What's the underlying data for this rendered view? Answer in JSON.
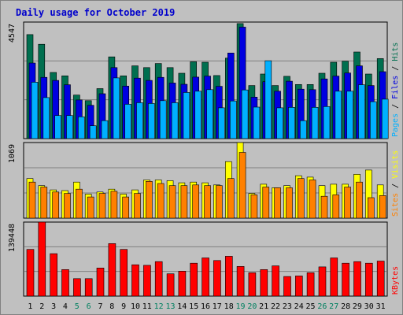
{
  "title": "Daily usage for October 2019",
  "colors": {
    "background": "#c0c0c0",
    "title": "#0000cc",
    "hits": "#006f4f",
    "files": "#0000e0",
    "pages": "#00b0ff",
    "visits": "#ffff00",
    "sites": "#ff8000",
    "kbytes": "#ff0000",
    "weekend_label": "#008060"
  },
  "chart_data": [
    {
      "type": "bar",
      "name": "hits-files-pages",
      "ymax_label": "4547",
      "legend": [
        "Pages",
        "Files",
        "Hits"
      ],
      "ylim": [
        0,
        4547
      ],
      "categories": [
        "1",
        "2",
        "3",
        "4",
        "5",
        "6",
        "7",
        "8",
        "9",
        "10",
        "11",
        "12",
        "13",
        "14",
        "15",
        "16",
        "17",
        "18",
        "19",
        "20",
        "21",
        "22",
        "23",
        "24",
        "25",
        "26",
        "27",
        "28",
        "29",
        "30",
        "31"
      ],
      "series": [
        {
          "name": "Hits",
          "color": "#006f4f",
          "values": [
            4060,
            3680,
            2580,
            2450,
            1700,
            1480,
            1950,
            3190,
            2450,
            2840,
            2770,
            2930,
            2770,
            2550,
            3000,
            2980,
            2460,
            3140,
            4490,
            2070,
            2520,
            2070,
            2430,
            2110,
            2110,
            2550,
            2980,
            3020,
            3380,
            2520,
            3120
          ]
        },
        {
          "name": "Files",
          "color": "#0000e0",
          "values": [
            2950,
            2390,
            2270,
            2100,
            1510,
            1300,
            1750,
            2770,
            2050,
            2360,
            2270,
            2390,
            2170,
            2120,
            2400,
            2440,
            2040,
            3340,
            4350,
            1620,
            2220,
            1850,
            2240,
            1930,
            1910,
            2330,
            2440,
            2560,
            2840,
            2070,
            2610
          ]
        },
        {
          "name": "Pages",
          "color": "#00b0ff",
          "values": [
            2200,
            1600,
            900,
            900,
            850,
            500,
            700,
            2370,
            1340,
            1400,
            1370,
            1480,
            1400,
            1800,
            1850,
            1910,
            1200,
            1470,
            1900,
            1230,
            3040,
            1200,
            1220,
            700,
            1220,
            1250,
            1850,
            1850,
            2100,
            1440,
            1540
          ]
        }
      ]
    },
    {
      "type": "bar",
      "name": "visits-sites",
      "ymax_label": "1069",
      "legend": [
        "Sites",
        "Visits"
      ],
      "ylim": [
        0,
        1069
      ],
      "categories": [
        "1",
        "2",
        "3",
        "4",
        "5",
        "6",
        "7",
        "8",
        "9",
        "10",
        "11",
        "12",
        "13",
        "14",
        "15",
        "16",
        "17",
        "18",
        "19",
        "20",
        "21",
        "22",
        "23",
        "24",
        "25",
        "26",
        "27",
        "28",
        "29",
        "30",
        "31"
      ],
      "series": [
        {
          "name": "Visits",
          "color": "#ffff00",
          "values": [
            560,
            460,
            400,
            390,
            510,
            340,
            370,
            410,
            340,
            400,
            540,
            540,
            530,
            500,
            510,
            500,
            470,
            800,
            1069,
            350,
            480,
            430,
            460,
            600,
            580,
            460,
            480,
            480,
            620,
            680,
            470
          ]
        },
        {
          "name": "Sites",
          "color": "#ff8000",
          "values": [
            510,
            440,
            370,
            350,
            410,
            300,
            350,
            380,
            300,
            350,
            520,
            490,
            460,
            460,
            470,
            460,
            460,
            560,
            930,
            330,
            440,
            430,
            430,
            560,
            540,
            310,
            330,
            440,
            510,
            290,
            320
          ]
        }
      ]
    },
    {
      "type": "bar",
      "name": "kbytes",
      "ymax_label": "139448",
      "legend": [
        "KBytes"
      ],
      "ylim": [
        0,
        139448
      ],
      "categories": [
        "1",
        "2",
        "3",
        "4",
        "5",
        "6",
        "7",
        "8",
        "9",
        "10",
        "11",
        "12",
        "13",
        "14",
        "15",
        "16",
        "17",
        "18",
        "19",
        "20",
        "21",
        "22",
        "23",
        "24",
        "25",
        "26",
        "27",
        "28",
        "29",
        "30",
        "31"
      ],
      "series": [
        {
          "name": "KBytes",
          "color": "#ff0000",
          "values": [
            88000,
            139448,
            80000,
            50000,
            33000,
            33000,
            53000,
            99000,
            88000,
            59000,
            58000,
            65000,
            42000,
            47000,
            62000,
            72000,
            67000,
            75000,
            56000,
            44000,
            50000,
            57000,
            37000,
            38000,
            44000,
            55000,
            72000,
            62000,
            65000,
            62000,
            66000
          ]
        }
      ]
    }
  ],
  "weekend_days": [
    5,
    6,
    12,
    13,
    19,
    20,
    26,
    27
  ]
}
